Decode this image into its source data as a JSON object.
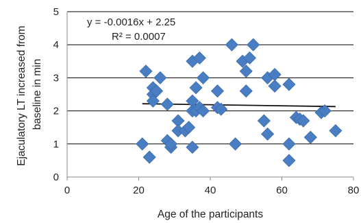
{
  "chart_data": {
    "type": "scatter",
    "title": "",
    "xlabel": "Age of the participants",
    "ylabel": "Ejaculatory LT increased from baseline in min",
    "ylabel_lines": [
      "Ejaculatory LT increased from",
      "baseline in min"
    ],
    "xlim": [
      0,
      80
    ],
    "ylim": [
      0,
      5
    ],
    "x_ticks": [
      0,
      20,
      40,
      60,
      80
    ],
    "y_ticks": [
      0,
      1,
      2,
      3,
      4,
      5
    ],
    "grid": "horizontal",
    "marker": "diamond",
    "colors": {
      "marker": "#4a7ec4",
      "marker_edge": "#3a6aa8",
      "trendline": "#111111",
      "grid": "#000000"
    },
    "annotations": {
      "equation": "y = -0.0016x + 2.25",
      "r_squared": "R² = 0.0007"
    },
    "trendline": {
      "slope": -0.0016,
      "intercept": 2.25,
      "x_range": [
        21,
        75
      ]
    },
    "series": [
      {
        "points": [
          [
            21,
            1.0
          ],
          [
            22,
            3.2
          ],
          [
            23,
            0.6
          ],
          [
            24,
            2.7
          ],
          [
            24,
            2.5
          ],
          [
            24,
            2.3
          ],
          [
            25,
            2.6
          ],
          [
            26,
            3.0
          ],
          [
            28,
            2.2
          ],
          [
            28,
            1.1
          ],
          [
            29,
            0.9
          ],
          [
            29,
            1.0
          ],
          [
            31,
            1.7
          ],
          [
            31,
            1.4
          ],
          [
            33,
            1.4
          ],
          [
            34,
            1.5
          ],
          [
            35,
            3.5
          ],
          [
            35,
            2.3
          ],
          [
            35,
            2.0
          ],
          [
            35,
            0.9
          ],
          [
            36,
            2.7
          ],
          [
            36,
            2.0
          ],
          [
            37,
            3.6
          ],
          [
            37,
            2.1
          ],
          [
            38,
            3.0
          ],
          [
            38,
            2.0
          ],
          [
            42,
            2.6
          ],
          [
            42,
            2.1
          ],
          [
            43,
            2.05
          ],
          [
            46,
            4.0
          ],
          [
            47,
            1.0
          ],
          [
            49,
            3.5
          ],
          [
            50,
            3.2
          ],
          [
            50,
            2.6
          ],
          [
            51,
            3.6
          ],
          [
            52,
            4.0
          ],
          [
            55,
            1.7
          ],
          [
            56,
            1.3
          ],
          [
            56,
            3.0
          ],
          [
            58,
            3.1
          ],
          [
            58,
            2.75
          ],
          [
            62,
            2.8
          ],
          [
            62,
            1.0
          ],
          [
            62,
            0.5
          ],
          [
            64,
            1.8
          ],
          [
            65,
            1.75
          ],
          [
            66,
            1.7
          ],
          [
            68,
            1.2
          ],
          [
            71,
            1.95
          ],
          [
            72,
            2.0
          ],
          [
            75,
            1.4
          ]
        ]
      }
    ]
  }
}
